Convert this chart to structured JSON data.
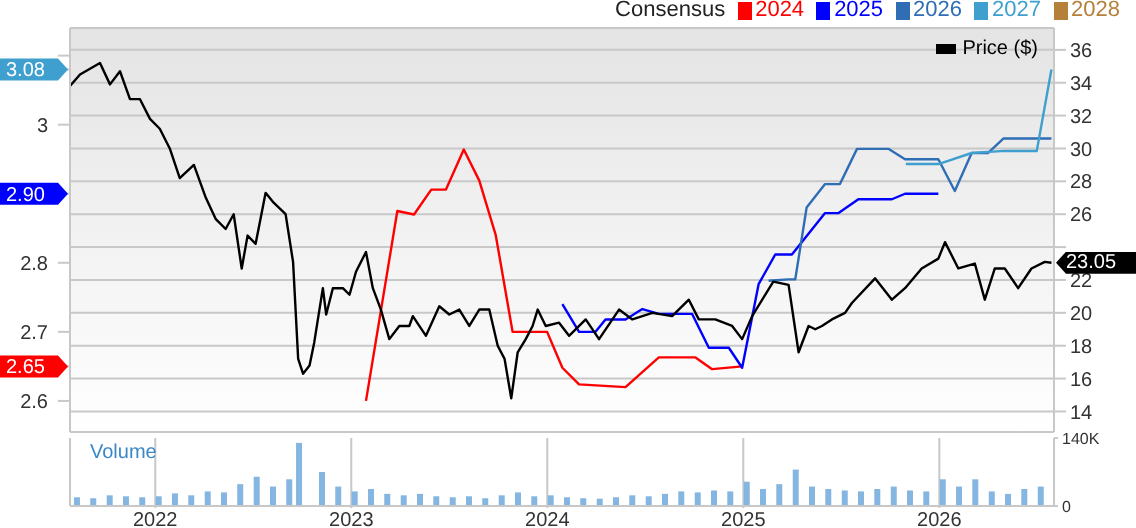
{
  "chart_data": [
    {
      "type": "line",
      "legend_title": "Consensus",
      "legend": "top right",
      "grid": true,
      "tick_labels": "y",
      "xlim": [
        2021.565,
        2026.585
      ],
      "xticks": [
        2022,
        2023,
        2024,
        2025,
        2026
      ],
      "ylim": [
        2.555,
        3.14
      ],
      "yticks": [
        2.6,
        {
          "value": 2.65,
          "label": "2.65"
        },
        2.7,
        2.8,
        {
          "value": 2.9,
          "label": "2.90"
        },
        3,
        {
          "value": 3.08,
          "label": "3.08"
        },
        {
          "value": 3.1,
          "label": null
        }
      ],
      "y2lim": [
        12.75,
        37.33
      ],
      "y2ticks": [
        14,
        16,
        18,
        20,
        22,
        {
          "value": 24,
          "label": null
        },
        26,
        28,
        30,
        32,
        34,
        36
      ],
      "series": [
        {
          "name": "2024",
          "color": "#ff0000",
          "x": [
            2023.075,
            2023.235,
            2023.32,
            2023.408,
            2023.483,
            2023.574,
            2023.653,
            2023.737,
            2023.823,
            2023.999,
            2024.077,
            2024.162,
            2024.399,
            2024.569,
            2024.756,
            2024.841,
            2024.994
          ],
          "values": [
            2.6,
            2.875,
            2.87,
            2.906,
            2.906,
            2.964,
            2.919,
            2.84,
            2.7,
            2.7,
            2.648,
            2.624,
            2.62,
            2.663,
            2.663,
            2.646,
            2.65
          ]
        },
        {
          "name": "2025",
          "color": "#0000ff",
          "x": [
            2024.077,
            2024.162,
            2024.246,
            2024.297,
            2024.399,
            2024.485,
            2024.569,
            2024.739,
            2024.824,
            2024.926,
            2024.994,
            2025.078,
            2025.163,
            2025.248,
            2025.417,
            2025.486,
            2025.587,
            2025.758,
            2025.825,
            2025.995
          ],
          "values": [
            2.74,
            2.7,
            2.7,
            2.718,
            2.718,
            2.733,
            2.726,
            2.726,
            2.677,
            2.677,
            2.648,
            2.769,
            2.812,
            2.812,
            2.872,
            2.872,
            2.892,
            2.892,
            2.9,
            2.9
          ]
        },
        {
          "name": "2026",
          "color": "#2f6db5",
          "x": [
            2025.129,
            2025.231,
            2025.265,
            2025.323,
            2025.417,
            2025.493,
            2025.58,
            2025.74,
            2025.825,
            2025.995,
            2026.079,
            2026.165,
            2026.249,
            2026.328,
            2026.497,
            2026.572
          ],
          "values": [
            2.774,
            2.776,
            2.776,
            2.88,
            2.914,
            2.914,
            2.965,
            2.965,
            2.95,
            2.95,
            2.904,
            2.959,
            2.959,
            2.98,
            2.98,
            2.98
          ]
        },
        {
          "name": "2027",
          "color": "#3fa0d0",
          "x": [
            2025.829,
            2025.995,
            2026.165,
            2026.331,
            2026.497,
            2026.572
          ],
          "values": [
            2.943,
            2.943,
            2.959,
            2.962,
            2.962,
            3.08
          ]
        },
        {
          "name": "2028",
          "color": "#b5803a"
        },
        {
          "name": "Price ($)",
          "color": "#000000",
          "axis": "y2",
          "x": [
            2021.565,
            2021.616,
            2021.718,
            2021.769,
            2021.82,
            2021.871,
            2021.922,
            2021.973,
            2022.023,
            2022.074,
            2022.125,
            2022.197,
            2022.258,
            2022.309,
            2022.359,
            2022.4,
            2022.441,
            2022.471,
            2022.512,
            2022.563,
            2022.604,
            2022.665,
            2022.703,
            2022.729,
            2022.754,
            2022.787,
            2022.811,
            2022.855,
            2022.872,
            2022.906,
            2022.957,
            2022.991,
            2023.024,
            2023.075,
            2023.11,
            2023.151,
            2023.194,
            2023.245,
            2023.296,
            2023.314,
            2023.381,
            2023.449,
            2023.5,
            2023.551,
            2023.602,
            2023.653,
            2023.704,
            2023.747,
            2023.782,
            2023.816,
            2023.849,
            2023.89,
            2023.925,
            2023.951,
            2023.992,
            2024.06,
            2024.111,
            2024.196,
            2024.264,
            2024.366,
            2024.434,
            2024.536,
            2024.637,
            2024.722,
            2024.773,
            2024.857,
            2024.943,
            2024.994,
            2025.045,
            2025.153,
            2025.231,
            2025.282,
            2025.333,
            2025.367,
            2025.401,
            2025.452,
            2025.519,
            2025.554,
            2025.672,
            2025.758,
            2025.825,
            2025.91,
            2025.995,
            2026.029,
            2026.097,
            2026.181,
            2026.232,
            2026.283,
            2026.334,
            2026.402,
            2026.47,
            2026.538,
            2026.572
          ],
          "values": [
            33.8,
            34.5,
            35.2,
            33.9,
            34.7,
            33,
            33,
            31.8,
            31.2,
            30,
            28.2,
            29,
            27,
            25.7,
            25.1,
            26,
            22.7,
            24.7,
            24.2,
            27.3,
            26.7,
            26,
            23.1,
            17.2,
            16.3,
            16.8,
            18.2,
            21.5,
            19.9,
            21.5,
            21.5,
            21.1,
            22.5,
            23.7,
            21.5,
            20.2,
            18.4,
            19.2,
            19.2,
            19.8,
            18.6,
            20.4,
            19.9,
            20.2,
            19.2,
            20.2,
            20.2,
            18,
            17.2,
            14.8,
            17.6,
            18.4,
            19.2,
            20.2,
            19.2,
            19.4,
            18.6,
            19.6,
            18.4,
            20.2,
            19.6,
            20,
            19.8,
            20.8,
            19.6,
            19.6,
            19.2,
            18.4,
            19.8,
            21.9,
            21.7,
            17.6,
            19.2,
            19,
            19.2,
            19.6,
            20,
            20.6,
            22.1,
            20.8,
            21.5,
            22.7,
            23.3,
            24.3,
            22.7,
            23,
            20.8,
            22.7,
            22.7,
            21.5,
            22.7,
            23.1,
            23.05
          ],
          "value_labels": [
            null,
            null,
            null,
            null,
            null,
            null,
            null,
            null,
            null,
            null,
            null,
            null,
            null,
            null,
            null,
            null,
            null,
            null,
            null,
            null,
            null,
            null,
            null,
            null,
            null,
            null,
            null,
            null,
            null,
            null,
            null,
            null,
            null,
            null,
            null,
            null,
            null,
            null,
            null,
            null,
            null,
            null,
            null,
            null,
            null,
            null,
            null,
            null,
            null,
            null,
            null,
            null,
            null,
            null,
            null,
            null,
            null,
            null,
            null,
            null,
            null,
            null,
            null,
            null,
            null,
            null,
            null,
            null,
            null,
            null,
            null,
            null,
            null,
            null,
            null,
            null,
            null,
            null,
            null,
            null,
            null,
            null,
            null,
            null,
            null,
            null,
            null,
            null,
            null,
            null,
            null,
            null,
            "23.05"
          ]
        }
      ]
    },
    {
      "type": "bar",
      "color": "#85b6e2",
      "grid": "x",
      "annotations": [
        "Volume"
      ],
      "xlim": [
        2021.565,
        2026.585
      ],
      "xticks": [
        2022,
        2023,
        2024,
        2025,
        2026
      ],
      "ylim": [
        0,
        140000
      ],
      "yticks": [
        0,
        {
          "value": 140000,
          "label": "140K"
        }
      ],
      "x": [
        2021.6,
        2021.683,
        2021.767,
        2021.85,
        2021.933,
        2022.017,
        2022.1,
        2022.183,
        2022.267,
        2022.35,
        2022.433,
        2022.517,
        2022.6,
        2022.683,
        2022.733,
        2022.85,
        2022.933,
        2023.017,
        2023.1,
        2023.183,
        2023.267,
        2023.35,
        2023.433,
        2023.517,
        2023.6,
        2023.683,
        2023.767,
        2023.85,
        2023.933,
        2024.017,
        2024.1,
        2024.183,
        2024.267,
        2024.35,
        2024.433,
        2024.517,
        2024.6,
        2024.683,
        2024.767,
        2024.85,
        2024.933,
        2025.017,
        2025.1,
        2025.183,
        2025.267,
        2025.35,
        2025.433,
        2025.517,
        2025.6,
        2025.683,
        2025.767,
        2025.85,
        2025.933,
        2026.017,
        2026.1,
        2026.183,
        2026.267,
        2026.35,
        2026.433,
        2026.517
      ],
      "values": [
        18000,
        16000,
        22000,
        20000,
        18000,
        20000,
        26000,
        22000,
        30000,
        28000,
        45000,
        60000,
        40000,
        55000,
        130000,
        70000,
        40000,
        30000,
        35000,
        25000,
        22000,
        25000,
        20000,
        18000,
        20000,
        16000,
        22000,
        28000,
        20000,
        22000,
        18000,
        16000,
        15000,
        18000,
        22000,
        20000,
        25000,
        30000,
        28000,
        32000,
        30000,
        50000,
        35000,
        45000,
        75000,
        40000,
        35000,
        32000,
        30000,
        35000,
        40000,
        32000,
        30000,
        55000,
        40000,
        55000,
        30000,
        25000,
        35000,
        40000
      ]
    }
  ]
}
